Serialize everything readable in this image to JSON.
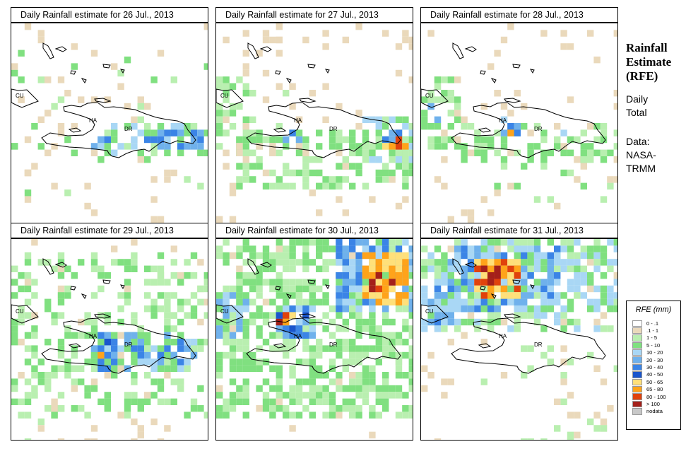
{
  "panels": [
    {
      "title": "Daily Rainfall estimate for  26 Jul., 2013",
      "scenario": "p26",
      "grid_seed": 11
    },
    {
      "title": "Daily Rainfall estimate for  27 Jul., 2013",
      "scenario": "p27",
      "grid_seed": 23
    },
    {
      "title": "Daily Rainfall estimate for  28 Jul., 2013",
      "scenario": "p28",
      "grid_seed": 37
    },
    {
      "title": "Daily Rainfall estimate for  29 Jul., 2013",
      "scenario": "p29",
      "grid_seed": 41
    },
    {
      "title": "Daily Rainfall estimate for  30 Jul., 2013",
      "scenario": "p30",
      "grid_seed": 53
    },
    {
      "title": "Daily Rainfall estimate for  31 Jul., 2013",
      "scenario": "p31",
      "grid_seed": 67
    }
  ],
  "map_labels": {
    "cuba": "CU",
    "haiti": "HA",
    "dominican_republic": "DR"
  },
  "side": {
    "title_line1": "Rainfall",
    "title_line2": "Estimate",
    "title_line3": "(RFE)",
    "daily": "Daily",
    "total": "Total",
    "data_label": "Data:",
    "nasa": "NASA-",
    "trmm": "TRMM"
  },
  "legend": {
    "title": "RFE (mm)",
    "items": [
      {
        "label": "0 - .1",
        "color": "#ffffff"
      },
      {
        "label": ".1 - 1",
        "color": "#ead9bb"
      },
      {
        "label": "1 - 5",
        "color": "#b9efb0"
      },
      {
        "label": "5 - 10",
        "color": "#80e080"
      },
      {
        "label": "10 - 20",
        "color": "#a9d7f5"
      },
      {
        "label": "20 - 30",
        "color": "#6fb1ec"
      },
      {
        "label": "30 - 40",
        "color": "#3b84e6"
      },
      {
        "label": "40 - 50",
        "color": "#1a55cc"
      },
      {
        "label": "50 - 65",
        "color": "#ffe07a"
      },
      {
        "label": "65 - 80",
        "color": "#ffa31a"
      },
      {
        "label": "80 - 100",
        "color": "#e0420c"
      },
      {
        "label": "> 100",
        "color": "#a4201a"
      },
      {
        "label": "nodata",
        "color": "#c8c8c8"
      }
    ]
  }
}
